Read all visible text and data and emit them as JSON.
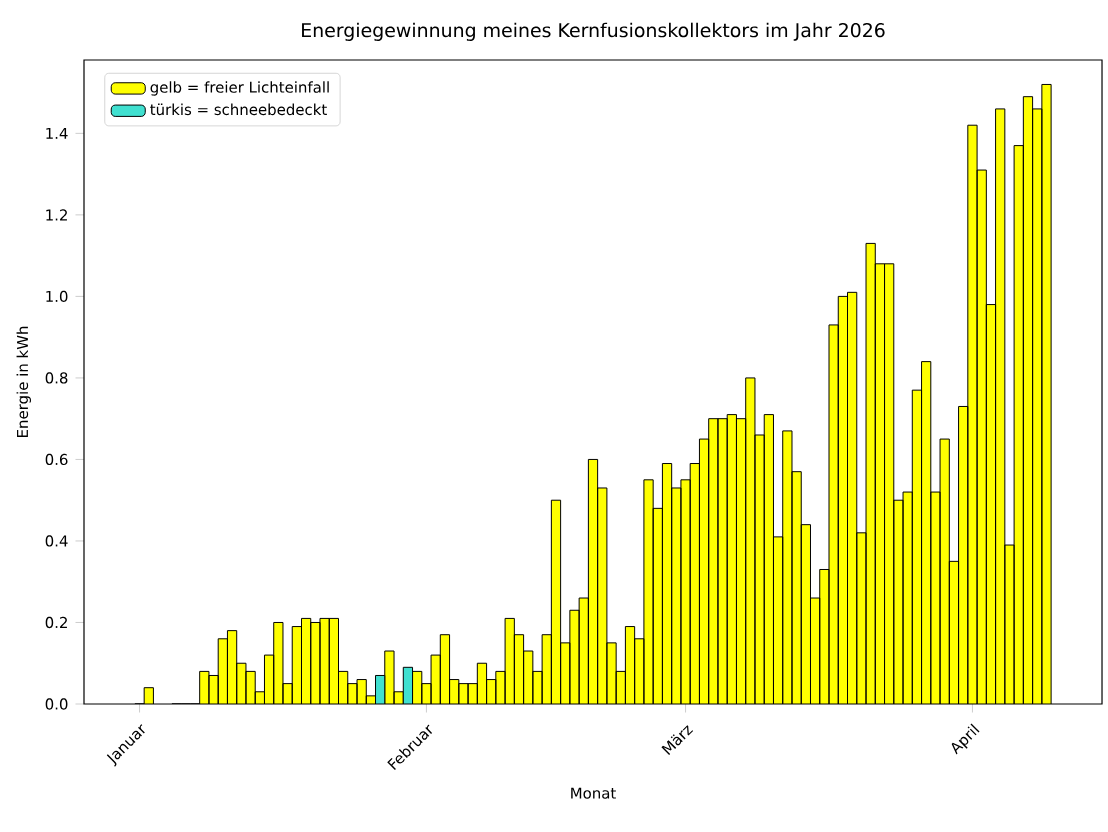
{
  "chart_data": {
    "type": "bar",
    "title": "Energiegewinnung meines Kernfusionskollektors im Jahr 2026",
    "xlabel": "Monat",
    "ylabel": "Energie in kWh",
    "x": [
      "2026-01-01",
      "2026-01-02",
      "2026-01-03",
      "2026-01-04",
      "2026-01-05",
      "2026-01-06",
      "2026-01-07",
      "2026-01-08",
      "2026-01-09",
      "2026-01-10",
      "2026-01-11",
      "2026-01-12",
      "2026-01-13",
      "2026-01-14",
      "2026-01-15",
      "2026-01-16",
      "2026-01-17",
      "2026-01-18",
      "2026-01-19",
      "2026-01-20",
      "2026-01-21",
      "2026-01-22",
      "2026-01-23",
      "2026-01-24",
      "2026-01-25",
      "2026-01-26",
      "2026-01-27",
      "2026-01-28",
      "2026-01-29",
      "2026-01-30",
      "2026-01-31",
      "2026-02-01",
      "2026-02-02",
      "2026-02-03",
      "2026-02-04",
      "2026-02-05",
      "2026-02-06",
      "2026-02-07",
      "2026-02-08",
      "2026-02-09",
      "2026-02-10",
      "2026-02-11",
      "2026-02-12",
      "2026-02-13",
      "2026-02-14",
      "2026-02-15",
      "2026-02-16",
      "2026-02-17",
      "2026-02-18",
      "2026-02-19",
      "2026-02-20",
      "2026-02-21",
      "2026-02-22",
      "2026-02-23",
      "2026-02-24",
      "2026-02-25",
      "2026-02-26",
      "2026-02-27",
      "2026-02-28",
      "2026-03-01",
      "2026-03-02",
      "2026-03-03",
      "2026-03-04",
      "2026-03-05",
      "2026-03-06",
      "2026-03-07",
      "2026-03-08",
      "2026-03-09",
      "2026-03-10",
      "2026-03-11",
      "2026-03-12",
      "2026-03-13",
      "2026-03-14",
      "2026-03-15",
      "2026-03-16",
      "2026-03-17",
      "2026-03-18",
      "2026-03-19",
      "2026-03-20",
      "2026-03-21",
      "2026-03-22",
      "2026-03-23",
      "2026-03-24",
      "2026-03-25",
      "2026-03-26",
      "2026-03-27",
      "2026-03-28",
      "2026-03-29",
      "2026-03-30",
      "2026-03-31",
      "2026-04-01",
      "2026-04-02",
      "2026-04-03",
      "2026-04-04",
      "2026-04-05",
      "2026-04-06",
      "2026-04-07",
      "2026-04-08",
      "2026-04-09"
    ],
    "series": [
      {
        "name": "gelb = freier Lichteinfall",
        "color": "#ffff00",
        "values": [
          0,
          0.04,
          null,
          null,
          0,
          0,
          0,
          0.08,
          0.07,
          0.16,
          0.18,
          0.1,
          0.08,
          0.03,
          0.12,
          0.2,
          0.05,
          0.19,
          0.21,
          0.2,
          0.21,
          0.21,
          0.08,
          0.05,
          0.06,
          0.02,
          null,
          0.13,
          0.03,
          null,
          0.08,
          0.05,
          0.12,
          0.17,
          0.06,
          0.05,
          0.05,
          0.1,
          0.06,
          0.08,
          0.21,
          0.17,
          0.13,
          0.08,
          0.17,
          0.5,
          0.15,
          0.23,
          0.26,
          0.6,
          0.53,
          0.15,
          0.08,
          0.19,
          0.16,
          0.55,
          0.48,
          0.59,
          0.53,
          0.55,
          0.59,
          0.65,
          0.7,
          0.7,
          0.71,
          0.7,
          0.8,
          0.66,
          0.71,
          0.41,
          0.67,
          0.57,
          0.44,
          0.26,
          0.33,
          0.93,
          1.0,
          1.01,
          0.42,
          1.13,
          1.08,
          1.08,
          0.5,
          0.52,
          0.77,
          0.84,
          0.52,
          0.65,
          0.35,
          0.73,
          1.42,
          1.31,
          0.98,
          1.46,
          0.39,
          1.37,
          1.49,
          1.46,
          1.52
        ]
      },
      {
        "name": "türkis = schneebedeckt",
        "color": "#40e0d0",
        "values": [
          null,
          null,
          null,
          null,
          null,
          null,
          null,
          null,
          null,
          null,
          null,
          null,
          null,
          null,
          null,
          null,
          null,
          null,
          null,
          null,
          null,
          null,
          null,
          null,
          null,
          null,
          0.07,
          null,
          null,
          0.09,
          null,
          null,
          null,
          null,
          null,
          null,
          null,
          null,
          null,
          null,
          null,
          null,
          null,
          null,
          null,
          null,
          null,
          null,
          null,
          null,
          null,
          null,
          null,
          null,
          null,
          null,
          null,
          null,
          null,
          null,
          null,
          null,
          null,
          null,
          null,
          null,
          null,
          null,
          null,
          null,
          null,
          null,
          null,
          null,
          null,
          null,
          null,
          null,
          null,
          null,
          null,
          null,
          null,
          null,
          null,
          null,
          null,
          null,
          null,
          null,
          null,
          null,
          null,
          null,
          null,
          null,
          null,
          null,
          null
        ]
      }
    ],
    "xlim": [
      "2025-12-26",
      "2026-04-15"
    ],
    "xticks": [
      {
        "value": "2026-01-01",
        "label": "Januar"
      },
      {
        "value": "2026-02-01",
        "label": "Februar"
      },
      {
        "value": "2026-03-01",
        "label": "März"
      },
      {
        "value": "2026-04-01",
        "label": "April"
      }
    ],
    "ylim": [
      0,
      1.58
    ],
    "yticks": [
      {
        "value": 0,
        "label": "0.0"
      },
      {
        "value": 0.2,
        "label": "0.2"
      },
      {
        "value": 0.4,
        "label": "0.4"
      },
      {
        "value": 0.6,
        "label": "0.6"
      },
      {
        "value": 0.8,
        "label": "0.8"
      },
      {
        "value": 1.0,
        "label": "1.0"
      },
      {
        "value": 1.2,
        "label": "1.2"
      },
      {
        "value": 1.4,
        "label": "1.4"
      }
    ],
    "legend": "top left"
  }
}
